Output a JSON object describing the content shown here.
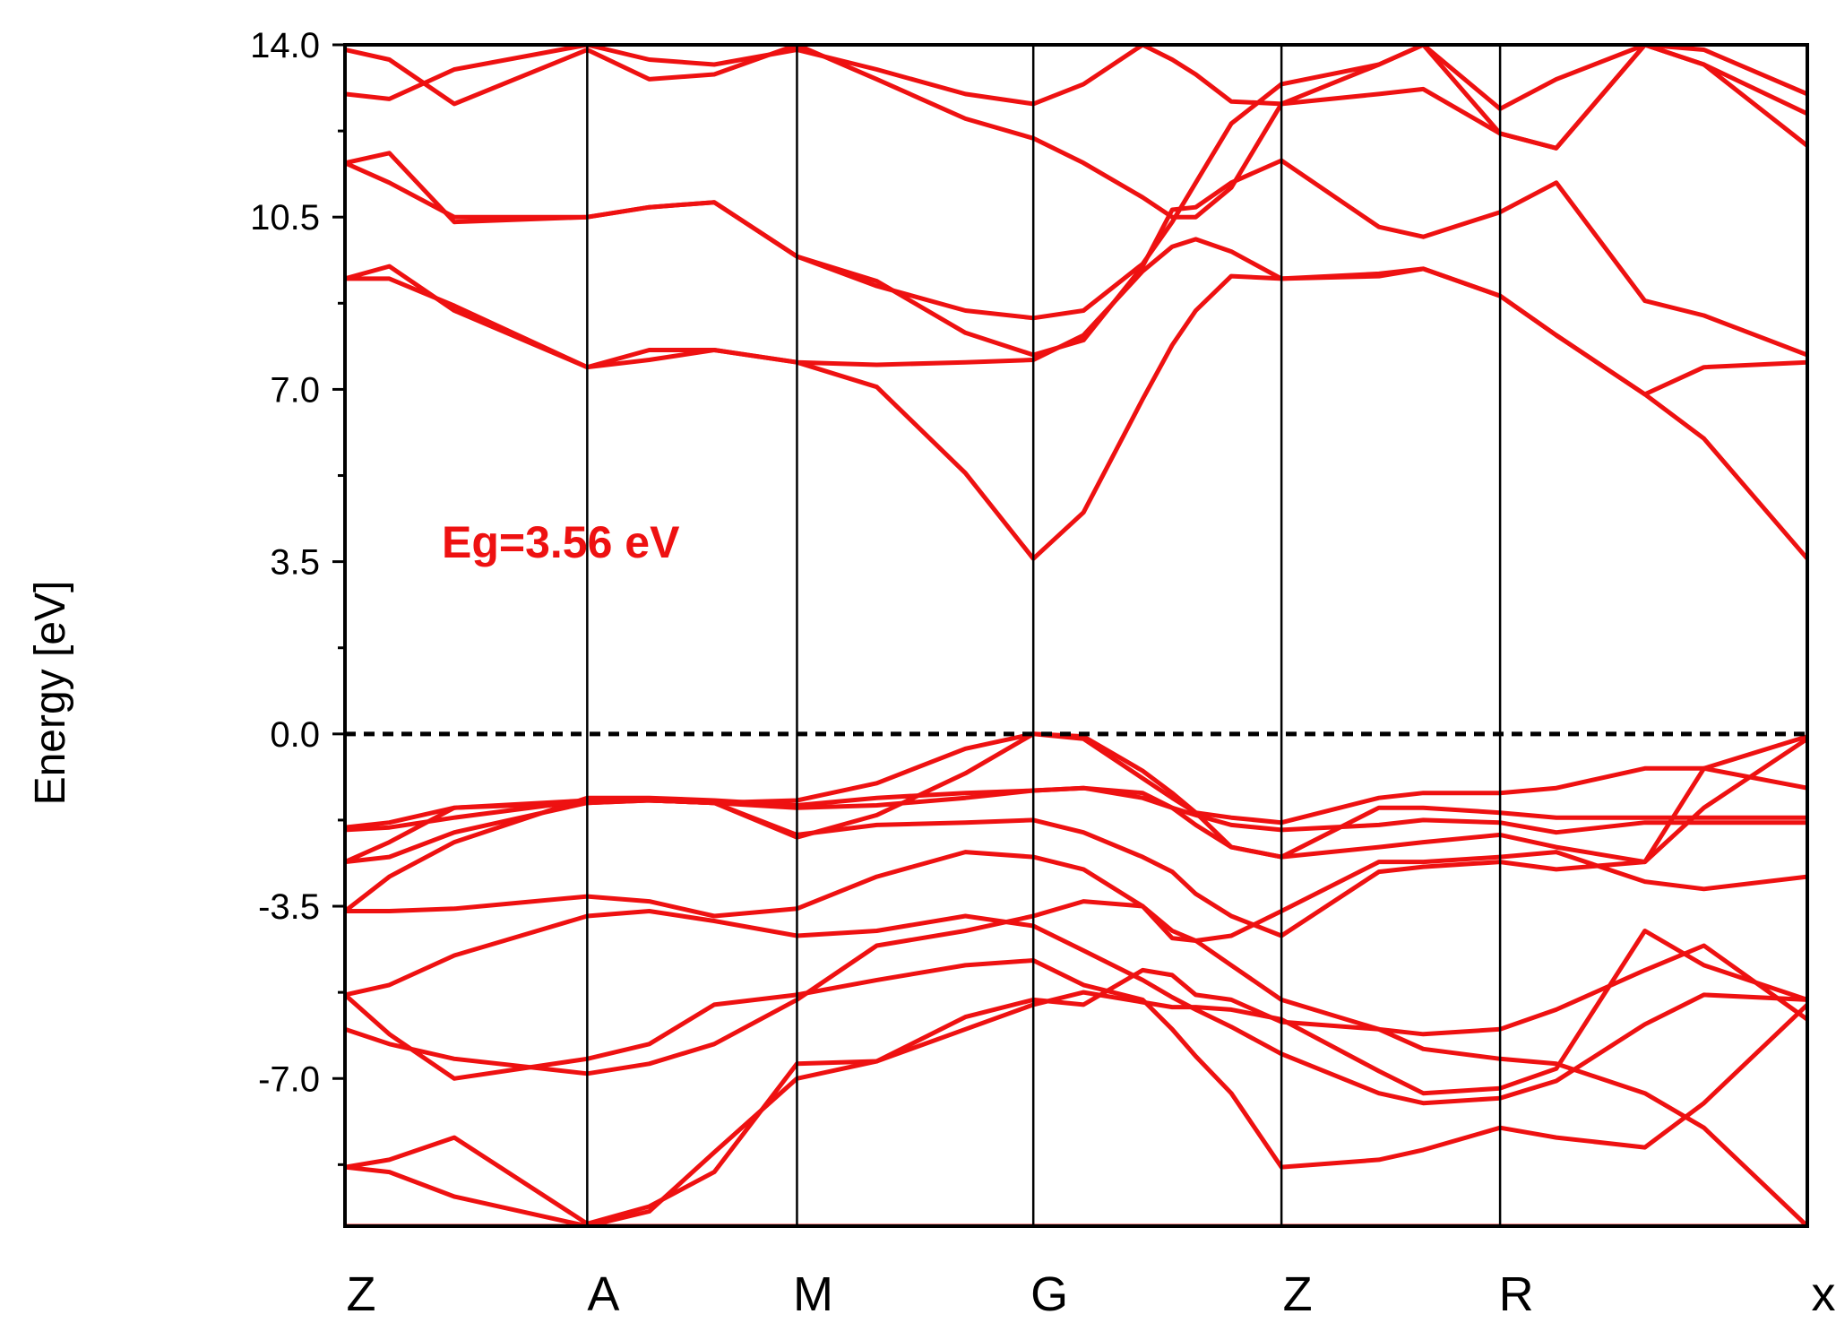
{
  "colors": {
    "band": "#ee1111",
    "axis": "#000000",
    "gap_label": "#ee1111"
  },
  "chart_data": {
    "type": "line",
    "title": "",
    "xlabel": "",
    "ylabel": "Energy [eV]",
    "ylim": [
      -10.0,
      14.0
    ],
    "yticks": [
      14.0,
      10.5,
      7.0,
      3.5,
      0.0,
      -3.5,
      -7.0
    ],
    "ytick_labels": [
      "14.0",
      "10.5",
      "7.0",
      "3.5",
      "0.0",
      "-3.5",
      "-7.0"
    ],
    "k_path": [
      "Z",
      "A",
      "M",
      "G",
      "Z",
      "R",
      "x"
    ],
    "k_positions": [
      0.0,
      0.82,
      1.53,
      2.33,
      3.17,
      3.91,
      4.95
    ],
    "xlim": [
      0.0,
      4.95
    ],
    "fermi_level": 0.0,
    "annotation": "Eg=3.56 eV",
    "series": [
      {
        "x": [
          0,
          0.15,
          0.37,
          0.82,
          1.03,
          1.25,
          1.53,
          1.8,
          2.1,
          2.33,
          2.5,
          2.7,
          2.8,
          2.88,
          3.0,
          3.17,
          3.5,
          3.65,
          3.91,
          4.1,
          4.4,
          4.6,
          4.95
        ],
        "y": [
          -10,
          -10,
          -10,
          -10,
          -10,
          -10,
          -10,
          -10,
          -10,
          -10,
          -10,
          -10,
          -10,
          -10,
          -10,
          -10,
          -10,
          -10,
          -10,
          -10,
          -10,
          -10,
          -10
        ]
      },
      {
        "x": [
          0,
          0.15,
          0.37,
          0.82,
          1.03,
          1.25,
          1.53,
          1.8,
          2.1,
          2.33,
          2.5,
          2.7,
          2.8,
          2.88,
          3.0,
          3.17,
          3.5,
          3.65,
          3.91,
          4.1,
          4.4,
          4.6,
          4.95
        ],
        "y": [
          -8.8,
          -8.65,
          -8.2,
          -9.95,
          -9.6,
          -8.9,
          -6.7,
          -6.65,
          -6.0,
          -5.5,
          -5.25,
          -5.45,
          -5.55,
          -5.55,
          -5.6,
          -5.8,
          -6.85,
          -7.3,
          -7.2,
          -6.8,
          -4.0,
          -4.7,
          -5.4
        ]
      },
      {
        "x": [
          0,
          0.15,
          0.37,
          0.82,
          1.03,
          1.25,
          1.53,
          1.8,
          2.1,
          2.33,
          2.5,
          2.7,
          2.8,
          2.88,
          3.0,
          3.17,
          3.5,
          3.65,
          3.91,
          4.1,
          4.4,
          4.6,
          4.95
        ],
        "y": [
          -8.8,
          -8.9,
          -9.4,
          -10.0,
          -9.7,
          -8.5,
          -7.0,
          -6.65,
          -5.75,
          -5.4,
          -5.5,
          -4.8,
          -4.9,
          -5.3,
          -5.4,
          -5.85,
          -6.0,
          -6.4,
          -6.6,
          -6.7,
          -7.3,
          -8.0,
          -10.0
        ]
      },
      {
        "x": [
          0,
          0.15,
          0.37,
          0.82,
          1.03,
          1.25,
          1.53,
          1.8,
          2.1,
          2.33,
          2.5,
          2.7,
          2.8,
          2.88,
          3.0,
          3.17,
          3.5,
          3.65,
          3.91,
          4.1,
          4.4,
          4.6,
          4.95
        ],
        "y": [
          -5.3,
          -6.1,
          -7.0,
          -6.6,
          -6.3,
          -5.5,
          -5.3,
          -5.0,
          -4.7,
          -4.6,
          -5.1,
          -5.4,
          -6.0,
          -6.55,
          -7.3,
          -8.8,
          -8.65,
          -8.45,
          -8.0,
          -8.2,
          -8.4,
          -7.5,
          -5.5
        ]
      },
      {
        "x": [
          0,
          0.15,
          0.37,
          0.82,
          1.03,
          1.25,
          1.53,
          1.8,
          2.1,
          2.33,
          2.5,
          2.7,
          2.8,
          2.88,
          3.0,
          3.17,
          3.5,
          3.65,
          3.91,
          4.1,
          4.4,
          4.6,
          4.95
        ],
        "y": [
          -5.3,
          -5.1,
          -4.5,
          -3.7,
          -3.6,
          -3.8,
          -4.1,
          -4.0,
          -3.7,
          -3.9,
          -4.4,
          -5.0,
          -5.35,
          -5.6,
          -5.95,
          -6.5,
          -7.3,
          -7.5,
          -7.4,
          -7.05,
          -5.9,
          -5.3,
          -5.4
        ]
      },
      {
        "x": [
          0,
          0.15,
          0.37,
          0.82,
          1.03,
          1.25,
          1.53,
          1.8,
          2.1,
          2.33,
          2.5,
          2.7,
          2.8,
          2.88,
          3.0,
          3.17,
          3.5,
          3.65,
          3.91,
          4.1,
          4.4,
          4.6,
          4.95
        ],
        "y": [
          -3.6,
          -3.6,
          -3.55,
          -3.3,
          -3.4,
          -3.7,
          -3.55,
          -2.9,
          -2.4,
          -2.5,
          -2.75,
          -3.5,
          -4.0,
          -4.2,
          -4.7,
          -5.4,
          -6.0,
          -6.1,
          -6.0,
          -5.6,
          -4.8,
          -4.3,
          -5.8
        ]
      },
      {
        "x": [
          0,
          0.15,
          0.37,
          0.82,
          1.03,
          1.25,
          1.53,
          1.8,
          2.1,
          2.33,
          2.5,
          2.7,
          2.8,
          2.88,
          3.0,
          3.17,
          3.5,
          3.65,
          3.91,
          4.1,
          4.4,
          4.6,
          4.95
        ],
        "y": [
          -6.0,
          -6.3,
          -6.6,
          -6.9,
          -6.7,
          -6.3,
          -5.4,
          -4.3,
          -4.0,
          -3.7,
          -3.4,
          -3.5,
          -4.15,
          -4.2,
          -4.1,
          -3.6,
          -2.6,
          -2.6,
          -2.5,
          -2.4,
          -3.0,
          -3.15,
          -2.9
        ]
      },
      {
        "x": [
          0,
          0.15,
          0.37,
          0.82,
          1.03,
          1.25,
          1.53,
          1.8,
          2.1,
          2.33,
          2.5,
          2.7,
          2.8,
          2.88,
          3.0,
          3.17,
          3.5,
          3.65,
          3.91,
          4.1,
          4.4,
          4.6,
          4.95
        ],
        "y": [
          -2.6,
          -2.5,
          -2.0,
          -1.4,
          -1.35,
          -1.4,
          -1.35,
          -1.0,
          -0.3,
          0.0,
          -0.1,
          -0.9,
          -1.3,
          -1.6,
          -1.7,
          -1.8,
          -1.3,
          -1.2,
          -1.2,
          -1.1,
          -0.7,
          -0.7,
          -1.1
        ]
      },
      {
        "x": [
          0,
          0.15,
          0.37,
          0.82,
          1.03,
          1.25,
          1.53,
          1.8,
          2.1,
          2.33,
          2.5,
          2.7,
          2.8,
          2.88,
          3.0,
          3.17,
          3.5,
          3.65,
          3.91,
          4.1,
          4.4,
          4.6,
          4.95
        ],
        "y": [
          -3.6,
          -2.9,
          -2.2,
          -1.3,
          -1.3,
          -1.35,
          -1.45,
          -1.3,
          -1.2,
          -1.15,
          -1.1,
          -1.2,
          -1.5,
          -1.85,
          -2.3,
          -2.5,
          -2.3,
          -2.2,
          -2.05,
          -2.3,
          -2.6,
          -1.5,
          -0.1
        ]
      },
      {
        "x": [
          0,
          0.15,
          0.37,
          0.82,
          1.03,
          1.25,
          1.53,
          1.8,
          2.1,
          2.33,
          2.5,
          2.7,
          2.8,
          2.88,
          3.0,
          3.17,
          3.5,
          3.65,
          3.91,
          4.1,
          4.4,
          4.6,
          4.95
        ],
        "y": [
          -1.9,
          -1.8,
          -1.5,
          -1.35,
          -1.35,
          -1.4,
          -1.5,
          -1.45,
          -1.3,
          -1.15,
          -1.1,
          -1.3,
          -1.5,
          -1.65,
          -1.85,
          -1.95,
          -1.85,
          -1.75,
          -1.8,
          -2.0,
          -1.8,
          -1.8,
          -1.8
        ]
      },
      {
        "x": [
          0,
          0.15,
          0.37,
          0.82,
          1.03,
          1.25,
          1.53,
          1.8,
          2.1,
          2.33,
          2.5,
          2.7,
          2.8,
          2.88,
          3.0,
          3.17,
          3.5,
          3.65,
          3.91,
          4.1,
          4.4,
          4.6,
          4.95
        ],
        "y": [
          -1.95,
          -1.9,
          -1.7,
          -1.35,
          -1.35,
          -1.4,
          -2.05,
          -1.85,
          -1.8,
          -1.75,
          -2.0,
          -2.5,
          -2.8,
          -3.25,
          -3.7,
          -4.1,
          -2.8,
          -2.7,
          -2.6,
          -2.75,
          -2.6,
          -0.7,
          -0.05
        ]
      },
      {
        "x": [
          0,
          0.15,
          0.37,
          0.82,
          1.03,
          1.25,
          1.53,
          1.8,
          2.1,
          2.33,
          2.5,
          2.7,
          2.8,
          2.88,
          3.0,
          3.17,
          3.5,
          3.65,
          3.91,
          4.1,
          4.4,
          4.6,
          4.95
        ],
        "y": [
          -2.6,
          -2.2,
          -1.5,
          -1.4,
          -1.35,
          -1.4,
          -2.1,
          -1.65,
          -0.8,
          0.0,
          -0.05,
          -0.75,
          -1.2,
          -1.6,
          -2.3,
          -2.5,
          -1.5,
          -1.5,
          -1.6,
          -1.7,
          -1.7,
          -1.7,
          -1.7
        ]
      },
      {
        "x": [
          0,
          0.15,
          0.37,
          0.82,
          1.03,
          1.25,
          1.53,
          1.8,
          2.1,
          2.33,
          2.5,
          2.7,
          2.8,
          2.88,
          3.0,
          3.17,
          3.5,
          3.65,
          3.91,
          4.1,
          4.4,
          4.6,
          4.95
        ],
        "y": [
          9.25,
          9.25,
          8.7,
          7.45,
          7.6,
          7.8,
          7.55,
          7.5,
          7.55,
          7.6,
          8.1,
          9.4,
          9.9,
          10.05,
          9.8,
          9.25,
          9.3,
          9.45,
          8.9,
          8.1,
          6.9,
          7.45,
          7.55
        ]
      },
      {
        "x": [
          0,
          0.15,
          0.37,
          0.82,
          1.03,
          1.25,
          1.53,
          1.8,
          2.1,
          2.33,
          2.5,
          2.7,
          2.8,
          2.88,
          3.0,
          3.17,
          3.5,
          3.65,
          3.91,
          4.1,
          4.4,
          4.6,
          4.95
        ],
        "y": [
          9.25,
          9.5,
          8.6,
          7.45,
          7.8,
          7.8,
          7.55,
          7.05,
          5.3,
          3.56,
          4.5,
          6.8,
          7.9,
          8.6,
          9.3,
          9.25,
          9.35,
          9.45,
          8.9,
          8.1,
          6.9,
          6.0,
          3.56
        ]
      },
      {
        "x": [
          0,
          0.15,
          0.37,
          0.82,
          1.03,
          1.25,
          1.53,
          1.8,
          2.1,
          2.33,
          2.5,
          2.7,
          2.8,
          2.88,
          3.0,
          3.17,
          3.5,
          3.65,
          3.91,
          4.1,
          4.4,
          4.6,
          4.95
        ],
        "y": [
          11.6,
          11.8,
          10.4,
          10.5,
          10.7,
          10.8,
          9.7,
          9.2,
          8.15,
          7.7,
          8.0,
          9.5,
          10.65,
          10.7,
          11.2,
          11.65,
          10.3,
          10.1,
          10.6,
          11.2,
          8.8,
          8.5,
          7.7
        ]
      },
      {
        "x": [
          0,
          0.15,
          0.37,
          0.82,
          1.03,
          1.25,
          1.53,
          1.8,
          2.1,
          2.33,
          2.5,
          2.7,
          2.8,
          2.88,
          3.0,
          3.17,
          3.5,
          3.65,
          3.91,
          4.1,
          4.4,
          4.6,
          4.95
        ],
        "y": [
          11.6,
          11.2,
          10.5,
          10.5,
          10.7,
          10.8,
          9.7,
          9.1,
          8.6,
          8.45,
          8.6,
          9.55,
          10.4,
          11.2,
          12.4,
          13.2,
          13.6,
          14.0,
          12.2,
          11.9,
          14.0,
          13.9,
          13.0
        ]
      },
      {
        "x": [
          0,
          0.15,
          0.37,
          0.82,
          1.03,
          1.25,
          1.53,
          1.8,
          2.1,
          2.33,
          2.5,
          2.7,
          2.8,
          2.88,
          3.0,
          3.17,
          3.5,
          3.65,
          3.91,
          4.1,
          4.4,
          4.6,
          4.95
        ],
        "y": [
          13.9,
          13.7,
          12.8,
          13.9,
          13.3,
          13.4,
          14.0,
          13.3,
          12.5,
          12.1,
          11.6,
          10.9,
          10.5,
          10.5,
          11.1,
          12.8,
          13.6,
          14.0,
          12.7,
          13.3,
          14.0,
          13.6,
          12.6
        ]
      },
      {
        "x": [
          0,
          0.15,
          0.37,
          0.82,
          1.03,
          1.25,
          1.53,
          1.8,
          2.1,
          2.33,
          2.5,
          2.7,
          2.8,
          2.88,
          3.0,
          3.17,
          3.5,
          3.65,
          3.91,
          4.1,
          4.4,
          4.6,
          4.95
        ],
        "y": [
          13.0,
          12.9,
          13.5,
          14.0,
          13.7,
          13.6,
          13.9,
          13.5,
          13.0,
          12.8,
          13.2,
          14.0,
          13.7,
          13.4,
          12.85,
          12.8,
          13.0,
          13.1,
          12.2,
          11.9,
          14.0,
          13.6,
          11.95
        ]
      }
    ]
  }
}
